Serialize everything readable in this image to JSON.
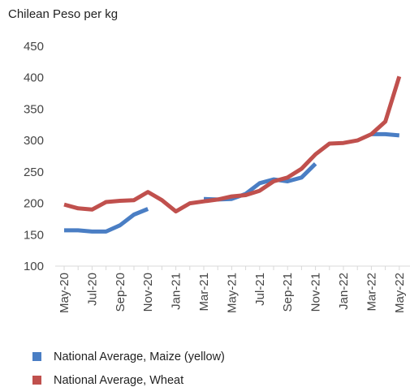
{
  "chart_data": {
    "type": "line",
    "ylabel": "Chilean Peso per kg",
    "ylim": [
      100,
      450
    ],
    "yticks": [
      100,
      150,
      200,
      250,
      300,
      350,
      400,
      450
    ],
    "x_tick_labels": [
      "May-20",
      "Jul-20",
      "Sep-20",
      "Nov-20",
      "Jan-21",
      "Mar-21",
      "May-21",
      "Jul-21",
      "Sep-21",
      "Nov-21",
      "Jan-22",
      "Mar-22",
      "May-22"
    ],
    "x": [
      "May-20",
      "Jun-20",
      "Jul-20",
      "Aug-20",
      "Sep-20",
      "Oct-20",
      "Nov-20",
      "Dec-20",
      "Jan-21",
      "Feb-21",
      "Mar-21",
      "Apr-21",
      "May-21",
      "Jun-21",
      "Jul-21",
      "Aug-21",
      "Sep-21",
      "Oct-21",
      "Nov-21",
      "Dec-21",
      "Jan-22",
      "Feb-22",
      "Mar-22",
      "Apr-22",
      "May-22"
    ],
    "grid": false,
    "legend_position": "bottom",
    "series": [
      {
        "name": "National Average, Maize (yellow)",
        "color": "#4a7ec4",
        "values": [
          157,
          157,
          155,
          155,
          165,
          182,
          191,
          null,
          null,
          null,
          207,
          206,
          207,
          215,
          232,
          238,
          235,
          241,
          263,
          null,
          null,
          null,
          310,
          310,
          308
        ]
      },
      {
        "name": "National Average, Wheat",
        "color": "#c0504d",
        "values": [
          198,
          192,
          190,
          202,
          204,
          205,
          218,
          205,
          187,
          200,
          203,
          206,
          211,
          213,
          220,
          235,
          241,
          255,
          278,
          295,
          296,
          300,
          310,
          330,
          402
        ]
      }
    ]
  }
}
